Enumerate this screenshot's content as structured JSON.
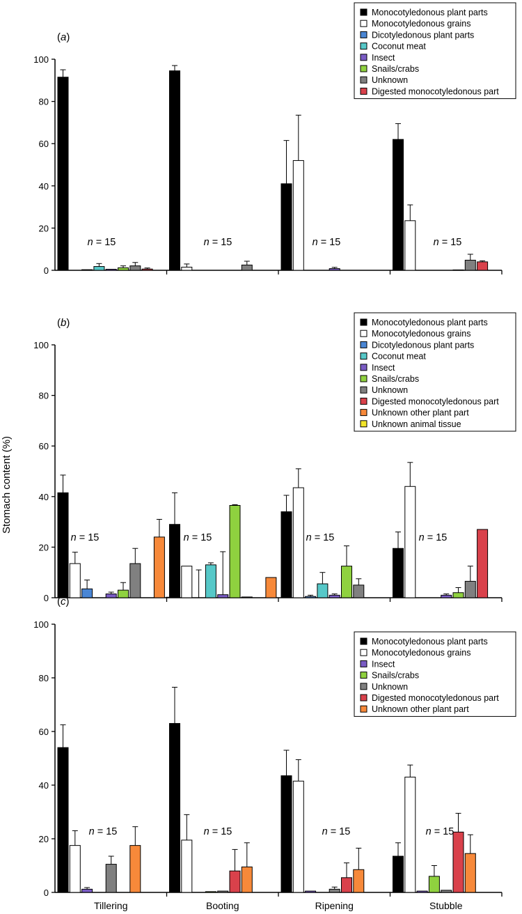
{
  "figure": {
    "ylabel": "Stomach content (%)",
    "categories": [
      "Tillering",
      "Booting",
      "Ripening",
      "Stubble"
    ],
    "legend_placement": "top-right inside each panel"
  },
  "series_colors": {
    "Monocotyledonous plant parts": "#000000",
    "Monocotyledonous grains": "#ffffff",
    "Dicotyledonous plant parts": "#4a86d4",
    "Coconut meat": "#56c8c8",
    "Insect": "#7a5cc4",
    "Snails/crabs": "#8fd13f",
    "Unknown": "#808080",
    "Digested monocotyledonous part": "#d9414b",
    "Unknown other plant part": "#f7893a",
    "Unknown animal tissue": "#f2e52a"
  },
  "chart_data": [
    {
      "panel": "(a)",
      "type": "bar",
      "categories": [
        "Tillering",
        "Booting",
        "Ripening",
        "Stubble"
      ],
      "ylim": [
        0,
        100
      ],
      "yticks": [
        "0",
        "20",
        "40",
        "60",
        "80",
        "100"
      ],
      "grid": false,
      "annotations": [
        "n = 15",
        "n = 15",
        "n = 15",
        "n = 15"
      ],
      "series": [
        {
          "name": "Monocotyledonous plant parts",
          "values": [
            91.5,
            94.5,
            41,
            62
          ],
          "errors": [
            3.5,
            2.5,
            20.5,
            7.5
          ]
        },
        {
          "name": "Monocotyledonous grains",
          "values": [
            0,
            1.5,
            52,
            23.5
          ],
          "errors": [
            0,
            1.5,
            21.5,
            7.5
          ]
        },
        {
          "name": "Dicotyledonous plant parts",
          "values": [
            0.3,
            0,
            0,
            0
          ],
          "errors": [
            0,
            0,
            0,
            0
          ]
        },
        {
          "name": "Coconut meat",
          "values": [
            1.8,
            0,
            0,
            0
          ],
          "errors": [
            1.4,
            0,
            0,
            0
          ]
        },
        {
          "name": "Insect",
          "values": [
            0.5,
            0,
            0.8,
            0
          ],
          "errors": [
            0,
            0,
            0.6,
            0
          ]
        },
        {
          "name": "Snails/crabs",
          "values": [
            1.2,
            0,
            0,
            0.2
          ],
          "errors": [
            0.9,
            0,
            0,
            0
          ]
        },
        {
          "name": "Unknown",
          "values": [
            2.1,
            2.5,
            0,
            4.8
          ],
          "errors": [
            1.6,
            1.8,
            0,
            2.8
          ]
        },
        {
          "name": "Digested monocotyledonous part",
          "values": [
            0.6,
            0,
            0,
            4
          ],
          "errors": [
            0.5,
            0,
            0,
            0.5
          ]
        }
      ]
    },
    {
      "panel": "(b)",
      "type": "bar",
      "categories": [
        "Tillering",
        "Booting",
        "Ripening",
        "Stubble"
      ],
      "ylim": [
        0,
        100
      ],
      "yticks": [
        "0",
        "20",
        "40",
        "60",
        "80",
        "100"
      ],
      "grid": false,
      "annotations": [
        "n = 15",
        "n = 15",
        "n = 15",
        "n = 15"
      ],
      "series": [
        {
          "name": "Monocotyledonous plant parts",
          "values": [
            41.5,
            29,
            34,
            19.5
          ],
          "errors": [
            7,
            12.5,
            6.5,
            6.5
          ]
        },
        {
          "name": "Monocotyledonous grains",
          "values": [
            13.5,
            12.5,
            43.5,
            44
          ],
          "errors": [
            4.5,
            0,
            7.5,
            9.5
          ]
        },
        {
          "name": "Dicotyledonous plant parts",
          "values": [
            3.5,
            0,
            0.5,
            0
          ],
          "errors": [
            3.5,
            11,
            0.5,
            0
          ]
        },
        {
          "name": "Coconut meat",
          "values": [
            0,
            13,
            5.5,
            0
          ],
          "errors": [
            0,
            0.8,
            4.5,
            0
          ]
        },
        {
          "name": "Insect",
          "values": [
            1.5,
            1.2,
            1,
            1
          ],
          "errors": [
            0.7,
            17,
            0.5,
            0.5
          ]
        },
        {
          "name": "Snails/crabs",
          "values": [
            3,
            36.5,
            12.5,
            2
          ],
          "errors": [
            3,
            0.3,
            8,
            2
          ]
        },
        {
          "name": "Unknown",
          "values": [
            13.5,
            0.3,
            5,
            6.5
          ],
          "errors": [
            6,
            0,
            2.5,
            6
          ]
        },
        {
          "name": "Digested monocotyledonous part",
          "values": [
            0,
            0,
            0,
            27
          ],
          "errors": [
            0,
            0,
            0,
            0
          ]
        },
        {
          "name": "Unknown other plant part",
          "values": [
            24,
            8,
            0,
            0
          ],
          "errors": [
            7,
            0,
            0,
            0
          ]
        },
        {
          "name": "Unknown animal tissue",
          "values": [
            0.2,
            0,
            0,
            0
          ],
          "errors": [
            0,
            0,
            0,
            0
          ]
        }
      ]
    },
    {
      "panel": "(c)",
      "type": "bar",
      "categories": [
        "Tillering",
        "Booting",
        "Ripening",
        "Stubble"
      ],
      "ylim": [
        0,
        100
      ],
      "yticks": [
        "0",
        "20",
        "40",
        "60",
        "80",
        "100"
      ],
      "grid": false,
      "annotations": [
        "n = 15",
        "n = 15",
        "n = 15",
        "n = 15"
      ],
      "series": [
        {
          "name": "Monocotyledonous plant parts",
          "values": [
            54,
            63,
            43.5,
            13.5
          ],
          "errors": [
            8.5,
            13.5,
            9.5,
            5
          ]
        },
        {
          "name": "Monocotyledonous grains",
          "values": [
            17.5,
            19.5,
            41.5,
            43
          ],
          "errors": [
            5.5,
            9.5,
            8,
            4.5
          ]
        },
        {
          "name": "Insect",
          "values": [
            1.2,
            0,
            0.5,
            0.5
          ],
          "errors": [
            0.6,
            0,
            0,
            0
          ]
        },
        {
          "name": "Snails/crabs",
          "values": [
            0,
            0.3,
            0,
            6
          ],
          "errors": [
            0,
            0,
            0,
            4
          ]
        },
        {
          "name": "Unknown",
          "values": [
            10.5,
            0.5,
            1.2,
            0.8
          ],
          "errors": [
            3,
            0,
            0.8,
            0
          ]
        },
        {
          "name": "Digested monocotyledonous part",
          "values": [
            0,
            8,
            5.5,
            22.5
          ],
          "errors": [
            0,
            8,
            5.5,
            7
          ]
        },
        {
          "name": "Unknown other plant part",
          "values": [
            17.5,
            9.5,
            8.5,
            14.5
          ],
          "errors": [
            7,
            9,
            8,
            7
          ]
        }
      ]
    }
  ]
}
